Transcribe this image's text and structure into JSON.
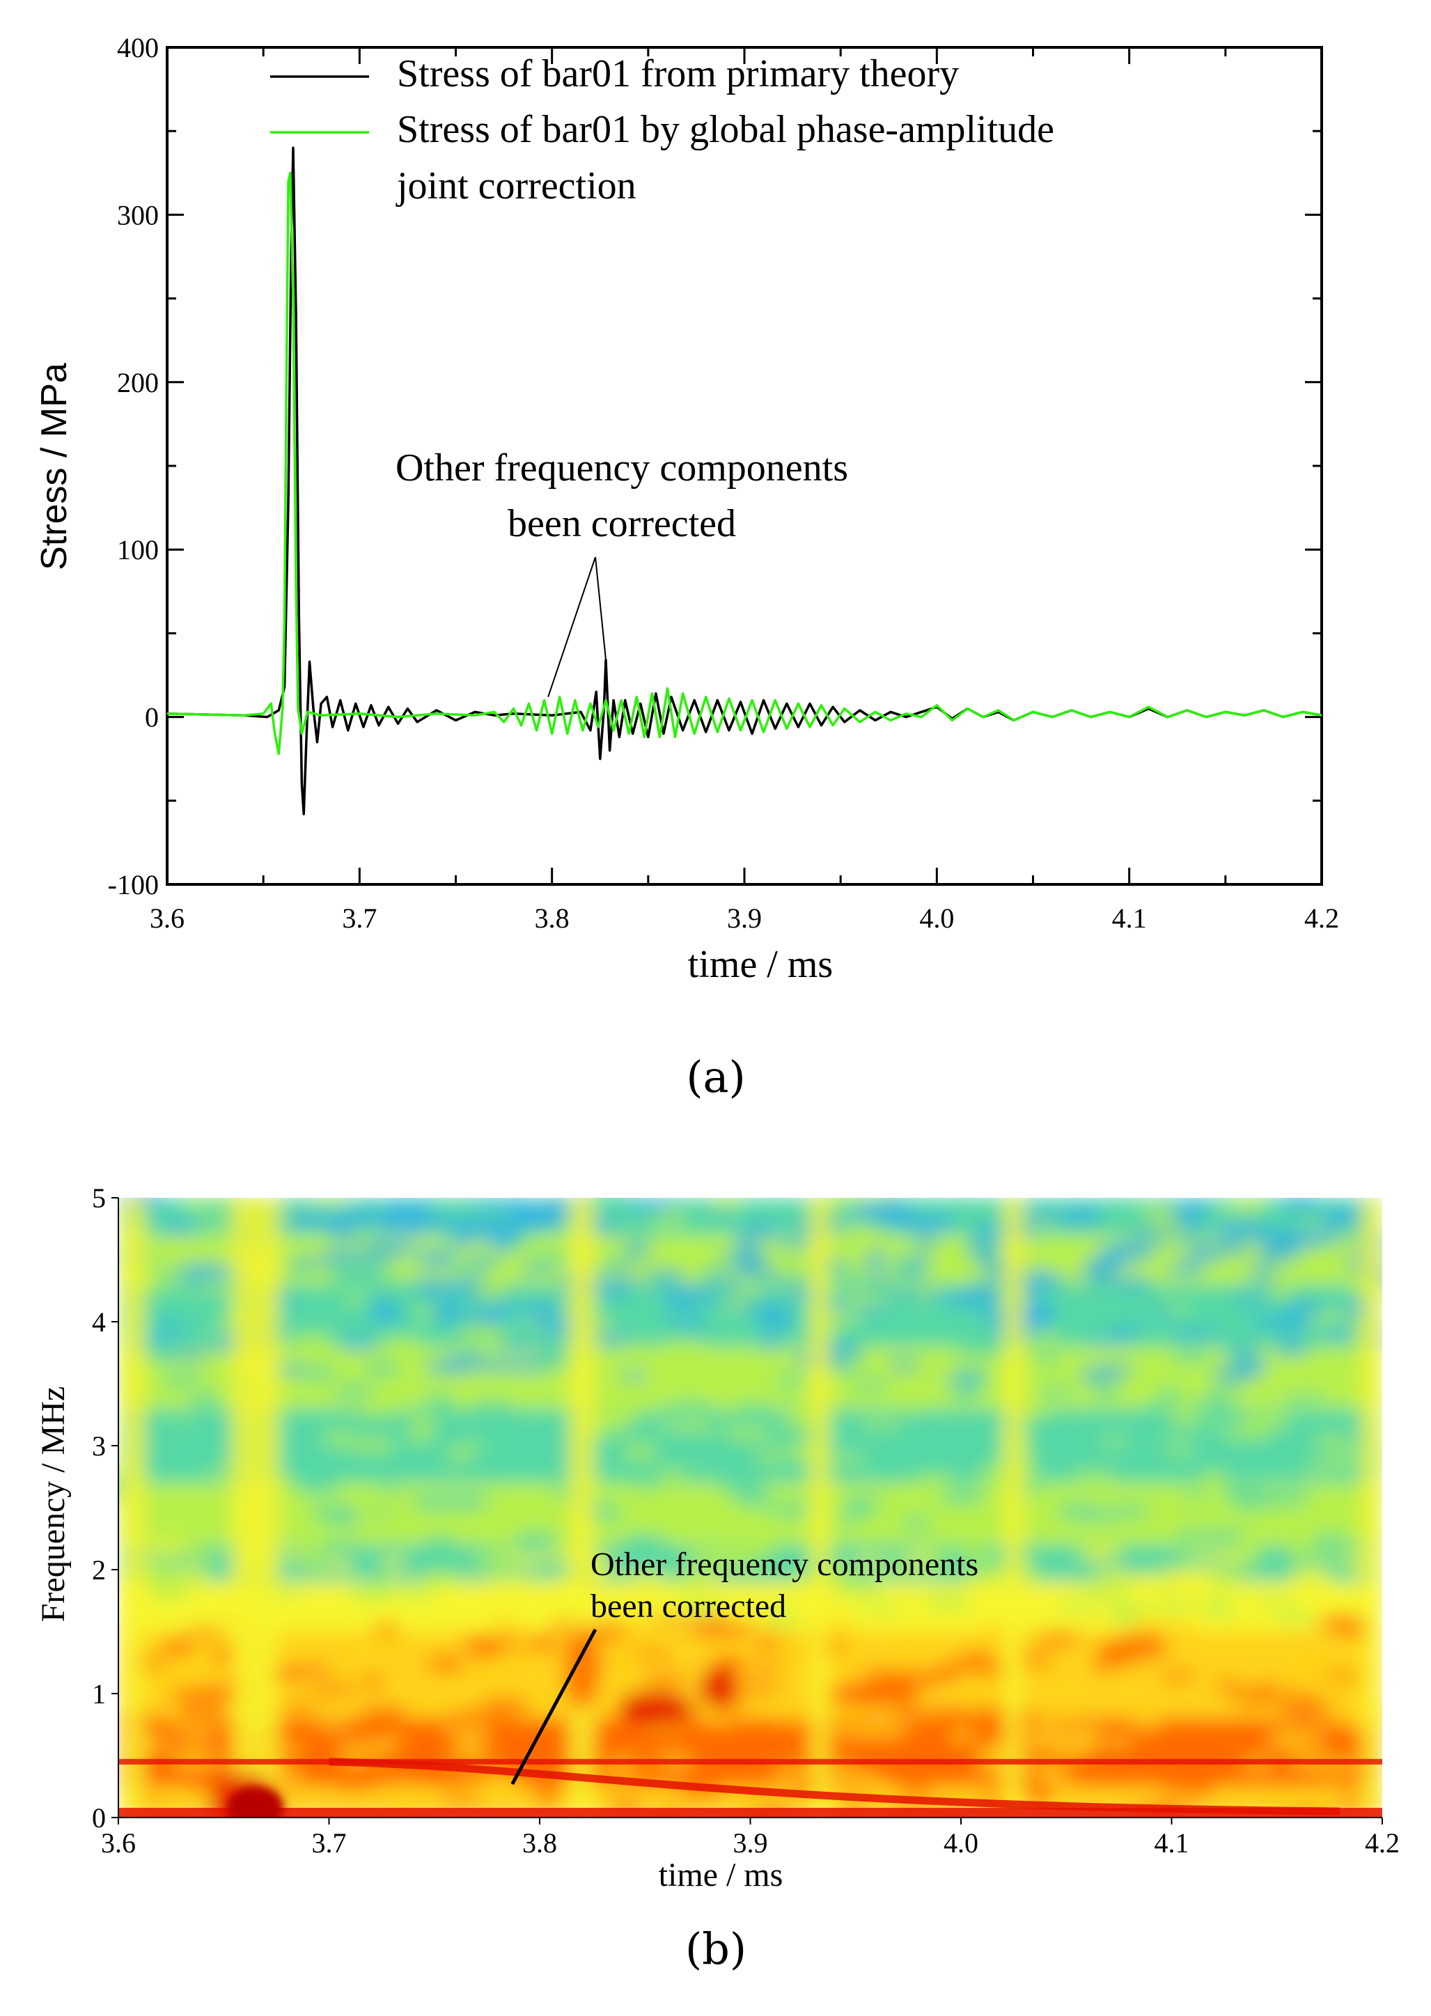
{
  "colors": {
    "primary": "#000000",
    "corrected": "#2ef00a",
    "annotation": "#000000"
  },
  "chart_data": [
    {
      "id": "a",
      "type": "line",
      "panel_label": "(a)",
      "title": "",
      "xlabel": "time / ms",
      "ylabel": "Stress / MPa",
      "xlim": [
        3.6,
        4.2
      ],
      "ylim": [
        -100,
        400
      ],
      "xticks": [
        "3.6",
        "3.7",
        "3.8",
        "3.9",
        "4.0",
        "4.1",
        "4.2"
      ],
      "yticks": [
        "-100",
        "0",
        "100",
        "200",
        "300",
        "400"
      ],
      "legend": {
        "placement": "top",
        "entries": [
          {
            "label": "Stress of bar01 from primary theory",
            "color": "#000000"
          },
          {
            "label_line1": "Stress of bar01 by global phase-amplitude",
            "label_line2": "joint correction",
            "color": "#2ef00a"
          }
        ]
      },
      "annotation": {
        "line1": "Other frequency components",
        "line2": "been corrected",
        "targets": [
          {
            "x": 3.798,
            "y": 12
          },
          {
            "x": 3.828,
            "y": 34
          }
        ]
      },
      "series": [
        {
          "name": "Stress of bar01 from primary theory",
          "color": "#000000",
          "points": [
            [
              3.6,
              2
            ],
            [
              3.64,
              1
            ],
            [
              3.652,
              0
            ],
            [
              3.658,
              4
            ],
            [
              3.661,
              18
            ],
            [
              3.663,
              130
            ],
            [
              3.6645,
              280
            ],
            [
              3.6655,
              340
            ],
            [
              3.667,
              240
            ],
            [
              3.6685,
              60
            ],
            [
              3.67,
              -40
            ],
            [
              3.671,
              -58
            ],
            [
              3.6725,
              -10
            ],
            [
              3.674,
              33
            ],
            [
              3.676,
              5
            ],
            [
              3.678,
              -15
            ],
            [
              3.68,
              8
            ],
            [
              3.683,
              12
            ],
            [
              3.686,
              -6
            ],
            [
              3.69,
              10
            ],
            [
              3.694,
              -8
            ],
            [
              3.698,
              8
            ],
            [
              3.702,
              -6
            ],
            [
              3.706,
              7
            ],
            [
              3.71,
              -5
            ],
            [
              3.715,
              6
            ],
            [
              3.72,
              -4
            ],
            [
              3.725,
              5
            ],
            [
              3.73,
              -3
            ],
            [
              3.74,
              4
            ],
            [
              3.75,
              -2
            ],
            [
              3.76,
              3
            ],
            [
              3.77,
              1
            ],
            [
              3.78,
              2
            ],
            [
              3.8,
              1
            ],
            [
              3.815,
              3
            ],
            [
              3.82,
              -8
            ],
            [
              3.823,
              15
            ],
            [
              3.825,
              -25
            ],
            [
              3.827,
              5
            ],
            [
              3.828,
              34
            ],
            [
              3.83,
              -20
            ],
            [
              3.832,
              10
            ],
            [
              3.835,
              -12
            ],
            [
              3.838,
              10
            ],
            [
              3.842,
              -10
            ],
            [
              3.846,
              8
            ],
            [
              3.85,
              -12
            ],
            [
              3.854,
              14
            ],
            [
              3.858,
              -10
            ],
            [
              3.862,
              12
            ],
            [
              3.868,
              -8
            ],
            [
              3.874,
              10
            ],
            [
              3.88,
              -9
            ],
            [
              3.886,
              10
            ],
            [
              3.892,
              -8
            ],
            [
              3.898,
              9
            ],
            [
              3.904,
              -10
            ],
            [
              3.91,
              10
            ],
            [
              3.916,
              -7
            ],
            [
              3.922,
              8
            ],
            [
              3.928,
              -6
            ],
            [
              3.934,
              8
            ],
            [
              3.94,
              -5
            ],
            [
              3.946,
              6
            ],
            [
              3.952,
              -3
            ],
            [
              3.96,
              4
            ],
            [
              3.968,
              -2
            ],
            [
              3.976,
              3
            ],
            [
              3.984,
              0
            ],
            [
              3.992,
              3
            ],
            [
              4.0,
              6
            ],
            [
              4.008,
              -1
            ],
            [
              4.016,
              5
            ],
            [
              4.024,
              0
            ],
            [
              4.032,
              3
            ],
            [
              4.04,
              -2
            ],
            [
              4.05,
              3
            ],
            [
              4.06,
              0
            ],
            [
              4.07,
              4
            ],
            [
              4.08,
              0
            ],
            [
              4.09,
              3
            ],
            [
              4.1,
              0
            ],
            [
              4.11,
              5
            ],
            [
              4.12,
              0
            ],
            [
              4.13,
              4
            ],
            [
              4.14,
              0
            ],
            [
              4.15,
              3
            ],
            [
              4.16,
              1
            ],
            [
              4.17,
              4
            ],
            [
              4.18,
              0
            ],
            [
              4.19,
              3
            ],
            [
              4.2,
              1
            ]
          ]
        },
        {
          "name": "Stress of bar01 by global phase-amplitude joint correction",
          "color": "#2ef00a",
          "points": [
            [
              3.6,
              2
            ],
            [
              3.64,
              1
            ],
            [
              3.65,
              2
            ],
            [
              3.654,
              8
            ],
            [
              3.656,
              -10
            ],
            [
              3.658,
              -22
            ],
            [
              3.66,
              5
            ],
            [
              3.661,
              60
            ],
            [
              3.662,
              200
            ],
            [
              3.663,
              320
            ],
            [
              3.664,
              325
            ],
            [
              3.6655,
              250
            ],
            [
              3.667,
              80
            ],
            [
              3.668,
              5
            ],
            [
              3.67,
              -10
            ],
            [
              3.673,
              3
            ],
            [
              3.68,
              1
            ],
            [
              3.7,
              2
            ],
            [
              3.72,
              0
            ],
            [
              3.74,
              2
            ],
            [
              3.76,
              1
            ],
            [
              3.77,
              3
            ],
            [
              3.775,
              -3
            ],
            [
              3.78,
              5
            ],
            [
              3.784,
              -5
            ],
            [
              3.788,
              8
            ],
            [
              3.792,
              -8
            ],
            [
              3.796,
              10
            ],
            [
              3.8,
              -10
            ],
            [
              3.804,
              12
            ],
            [
              3.808,
              -10
            ],
            [
              3.812,
              10
            ],
            [
              3.816,
              -8
            ],
            [
              3.82,
              8
            ],
            [
              3.824,
              -6
            ],
            [
              3.828,
              10
            ],
            [
              3.832,
              -8
            ],
            [
              3.836,
              10
            ],
            [
              3.84,
              -10
            ],
            [
              3.844,
              12
            ],
            [
              3.848,
              -12
            ],
            [
              3.852,
              14
            ],
            [
              3.856,
              -12
            ],
            [
              3.86,
              17
            ],
            [
              3.864,
              -12
            ],
            [
              3.868,
              14
            ],
            [
              3.874,
              -10
            ],
            [
              3.88,
              12
            ],
            [
              3.886,
              -9
            ],
            [
              3.892,
              11
            ],
            [
              3.898,
              -8
            ],
            [
              3.904,
              10
            ],
            [
              3.91,
              -9
            ],
            [
              3.916,
              10
            ],
            [
              3.922,
              -7
            ],
            [
              3.928,
              8
            ],
            [
              3.934,
              -6
            ],
            [
              3.94,
              7
            ],
            [
              3.946,
              -5
            ],
            [
              3.952,
              5
            ],
            [
              3.96,
              -3
            ],
            [
              3.968,
              3
            ],
            [
              3.976,
              -2
            ],
            [
              3.984,
              2
            ],
            [
              3.992,
              0
            ],
            [
              4.0,
              7
            ],
            [
              4.008,
              -2
            ],
            [
              4.016,
              5
            ],
            [
              4.024,
              0
            ],
            [
              4.032,
              4
            ],
            [
              4.04,
              -2
            ],
            [
              4.05,
              3
            ],
            [
              4.06,
              0
            ],
            [
              4.07,
              4
            ],
            [
              4.08,
              0
            ],
            [
              4.09,
              3
            ],
            [
              4.1,
              0
            ],
            [
              4.11,
              6
            ],
            [
              4.12,
              0
            ],
            [
              4.13,
              4
            ],
            [
              4.14,
              0
            ],
            [
              4.15,
              3
            ],
            [
              4.16,
              1
            ],
            [
              4.17,
              4
            ],
            [
              4.18,
              0
            ],
            [
              4.19,
              3
            ],
            [
              4.2,
              1
            ]
          ]
        }
      ]
    },
    {
      "id": "b",
      "type": "heatmap",
      "panel_label": "(b)",
      "title": "",
      "xlabel": "time / ms",
      "ylabel": "Frequency / MHz",
      "xlim": [
        3.6,
        4.2
      ],
      "ylim": [
        0,
        5
      ],
      "xticks": [
        "3.6",
        "3.7",
        "3.8",
        "3.9",
        "4.0",
        "4.1",
        "4.2"
      ],
      "yticks": [
        "0",
        "1",
        "2",
        "3",
        "4",
        "5"
      ],
      "colormap": [
        "#e40f00",
        "#ff6a00",
        "#ffd21a",
        "#f7f52e",
        "#b8f04a",
        "#55d8a6",
        "#2bb0e6",
        "#1a63d6"
      ],
      "features": {
        "ridge_constant_mhz": 0.45,
        "ridge_decay_from": [
          3.7,
          0.45
        ],
        "ridge_decay_to": [
          4.18,
          0.05
        ],
        "low_band_mhz": 0.05,
        "pulse_time_ms": 3.665
      },
      "annotation": {
        "line1": "Other frequency components",
        "line2": "been  corrected",
        "target": {
          "x": 3.787,
          "y": 0.27
        }
      }
    }
  ]
}
